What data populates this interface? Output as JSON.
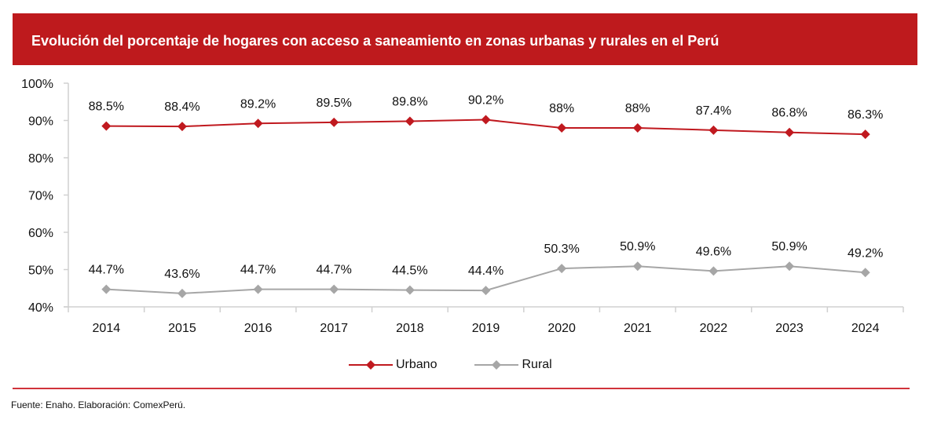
{
  "header": {
    "title": "Evolución del porcentaje de hogares con acceso a saneamiento en zonas urbanas y rurales en el Perú"
  },
  "footer": {
    "source": "Fuente: Enaho. Elaboración: ComexPerú."
  },
  "colors": {
    "title_bar": "#be1a1d",
    "urbano": "#c0191f",
    "rural": "#a6a6a6",
    "axis": "#d0d0d0",
    "rule": "#d0333a"
  },
  "chart_data": {
    "type": "line",
    "title": "Evolución del porcentaje de hogares con acceso a saneamiento en zonas urbanas y rurales en el Perú",
    "xlabel": "",
    "ylabel": "",
    "categories": [
      "2014",
      "2015",
      "2016",
      "2017",
      "2018",
      "2019",
      "2020",
      "2021",
      "2022",
      "2023",
      "2024"
    ],
    "ylim": [
      40,
      100
    ],
    "yticks": [
      40,
      50,
      60,
      70,
      80,
      90,
      100
    ],
    "ytick_labels": [
      "40%",
      "50%",
      "60%",
      "70%",
      "80%",
      "90%",
      "100%"
    ],
    "grid": false,
    "legend_position": "bottom",
    "series": [
      {
        "name": "Urbano",
        "color": "#c0191f",
        "marker": "diamond",
        "values": [
          88.5,
          88.4,
          89.2,
          89.5,
          89.8,
          90.2,
          88.0,
          88.0,
          87.4,
          86.8,
          86.3
        ],
        "labels": [
          "88.5%",
          "88.4%",
          "89.2%",
          "89.5%",
          "89.8%",
          "90.2%",
          "88%",
          "88%",
          "87.4%",
          "86.8%",
          "86.3%"
        ]
      },
      {
        "name": "Rural",
        "color": "#a6a6a6",
        "marker": "diamond",
        "values": [
          44.7,
          43.6,
          44.7,
          44.7,
          44.5,
          44.4,
          50.3,
          50.9,
          49.6,
          50.9,
          49.2
        ],
        "labels": [
          "44.7%",
          "43.6%",
          "44.7%",
          "44.7%",
          "44.5%",
          "44.4%",
          "50.3%",
          "50.9%",
          "49.6%",
          "50.9%",
          "49.2%"
        ]
      }
    ]
  }
}
